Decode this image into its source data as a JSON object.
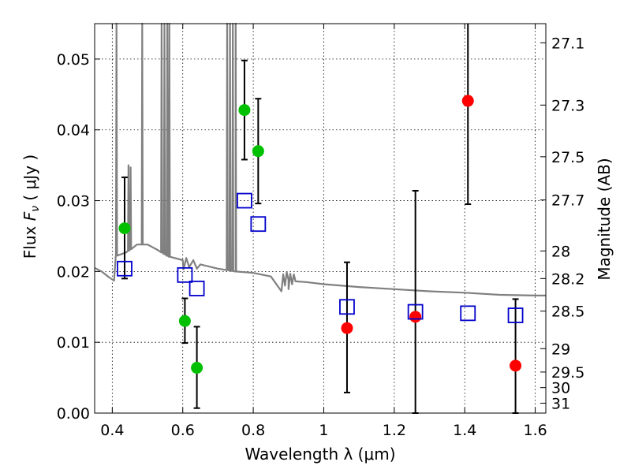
{
  "chart_data": {
    "type": "scatter",
    "title": "",
    "xlabel": "Wavelength  λ (μm)",
    "ylabel": "Flux  Fν  ( μJy )",
    "ylabel_right": "Magnitude (AB)",
    "xlim": [
      0.35,
      1.63
    ],
    "ylim": [
      0.0,
      0.055
    ],
    "grid": true,
    "x_ticks": [
      0.4,
      0.6,
      0.8,
      1.0,
      1.2,
      1.4,
      1.6
    ],
    "x_tick_labels": [
      "0.4",
      "0.6",
      "0.8",
      "1",
      "1.2",
      "1.4",
      "1.6"
    ],
    "y_ticks": [
      0.0,
      0.01,
      0.02,
      0.03,
      0.04,
      0.05
    ],
    "y_tick_labels": [
      "0.00",
      "0.01",
      "0.02",
      "0.03",
      "0.04",
      "0.05"
    ],
    "right_ticks": [
      {
        "flux": 0.0523,
        "label": "27.1"
      },
      {
        "flux": 0.0435,
        "label": "27.3"
      },
      {
        "flux": 0.0362,
        "label": "27.5"
      },
      {
        "flux": 0.0301,
        "label": "27.7"
      },
      {
        "flux": 0.0229,
        "label": "28"
      },
      {
        "flux": 0.019,
        "label": "28.2"
      },
      {
        "flux": 0.0144,
        "label": "28.5"
      },
      {
        "flux": 0.0091,
        "label": "29"
      },
      {
        "flux": 0.0058,
        "label": "29.5"
      },
      {
        "flux": 0.0036,
        "label": "30"
      },
      {
        "flux": 0.0014,
        "label": "31"
      }
    ],
    "series": [
      {
        "marker": "circle",
        "color": "#00c000",
        "points": [
          {
            "x": 0.435,
            "y": 0.0261,
            "err_low": 0.0071,
            "err_high": 0.0072
          },
          {
            "x": 0.606,
            "y": 0.013,
            "err_low": 0.0031,
            "err_high": 0.0032
          },
          {
            "x": 0.64,
            "y": 0.0064,
            "err_low": 0.0057,
            "err_high": 0.0058
          },
          {
            "x": 0.775,
            "y": 0.0428,
            "err_low": 0.007,
            "err_high": 0.007
          },
          {
            "x": 0.814,
            "y": 0.037,
            "err_low": 0.0074,
            "err_high": 0.0074
          }
        ]
      },
      {
        "marker": "circle",
        "color": "#ff0000",
        "points": [
          {
            "x": 1.066,
            "y": 0.012,
            "err_low": 0.0091,
            "err_high": 0.0093
          },
          {
            "x": 1.26,
            "y": 0.0136,
            "err_low": 0.0136,
            "err_high": 0.0178
          },
          {
            "x": 1.409,
            "y": 0.0441,
            "err_low": 0.0146,
            "err_high": 0.012
          },
          {
            "x": 1.544,
            "y": 0.0067,
            "err_low": 0.0067,
            "err_high": 0.0094
          }
        ]
      },
      {
        "marker": "square",
        "color": "#0000cc",
        "points": [
          {
            "x": 0.435,
            "y": 0.0204
          },
          {
            "x": 0.606,
            "y": 0.0195
          },
          {
            "x": 0.64,
            "y": 0.0176
          },
          {
            "x": 0.775,
            "y": 0.03
          },
          {
            "x": 0.814,
            "y": 0.0267
          },
          {
            "x": 1.066,
            "y": 0.015
          },
          {
            "x": 1.26,
            "y": 0.0143
          },
          {
            "x": 1.409,
            "y": 0.0141
          },
          {
            "x": 1.544,
            "y": 0.0138
          }
        ]
      }
    ],
    "model_spectrum": {
      "color": "#808080",
      "continuum": [
        [
          0.35,
          0.0205
        ],
        [
          0.37,
          0.02
        ],
        [
          0.39,
          0.0192
        ],
        [
          0.405,
          0.0187
        ],
        [
          0.41,
          0.0222
        ],
        [
          0.44,
          0.0227
        ],
        [
          0.47,
          0.0238
        ],
        [
          0.5,
          0.0238
        ],
        [
          0.53,
          0.023
        ],
        [
          0.56,
          0.0221
        ],
        [
          0.6,
          0.0216
        ],
        [
          0.65,
          0.021
        ],
        [
          0.7,
          0.0204
        ],
        [
          0.75,
          0.02
        ],
        [
          0.8,
          0.0198
        ],
        [
          0.85,
          0.0193
        ],
        [
          0.9,
          0.0188
        ],
        [
          0.95,
          0.0185
        ],
        [
          1.0,
          0.0182
        ],
        [
          1.1,
          0.0178
        ],
        [
          1.2,
          0.0175
        ],
        [
          1.3,
          0.0172
        ],
        [
          1.4,
          0.017
        ],
        [
          1.5,
          0.0167
        ],
        [
          1.6,
          0.0166
        ],
        [
          1.63,
          0.0166
        ]
      ],
      "emission_lines": [
        {
          "x": 0.412,
          "peak": 0.055
        },
        {
          "x": 0.446,
          "peak": 0.035
        },
        {
          "x": 0.452,
          "peak": 0.0347
        },
        {
          "x": 0.485,
          "peak": 0.055
        },
        {
          "x": 0.54,
          "peak": 0.055
        },
        {
          "x": 0.548,
          "peak": 0.055
        },
        {
          "x": 0.556,
          "peak": 0.055
        },
        {
          "x": 0.562,
          "peak": 0.055
        },
        {
          "x": 0.726,
          "peak": 0.055
        },
        {
          "x": 0.734,
          "peak": 0.055
        },
        {
          "x": 0.742,
          "peak": 0.055
        },
        {
          "x": 0.75,
          "peak": 0.055
        }
      ]
    }
  }
}
